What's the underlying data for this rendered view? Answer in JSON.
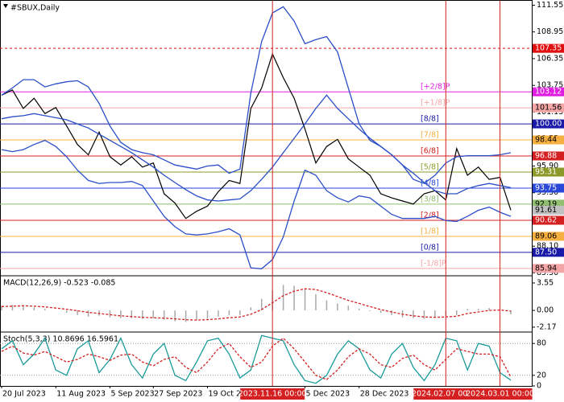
{
  "chart_data": [
    {
      "type": "line",
      "title": "#SBUX,Daily",
      "categories": [
        "20 Jul 2023",
        null,
        null,
        null,
        null,
        "11 Aug 2023",
        null,
        null,
        null,
        null,
        "5 Sep 2023",
        null,
        null,
        null,
        "27 Sep 2023",
        null,
        null,
        null,
        null,
        "19 Oct 2023",
        null,
        null,
        null,
        null,
        null,
        "2023.11.16 00:00",
        null,
        null,
        "5 Dec 2023",
        null,
        null,
        null,
        null,
        "28 Dec 2023",
        null,
        null,
        null,
        null,
        null,
        null,
        null,
        "2024.02.07 00:00",
        null,
        null,
        null,
        null,
        "2024.03.01 00:00",
        null
      ],
      "vlines": [
        "2023.11.16 00:00",
        "2024.02.07 00:00",
        "2024.03.01 00:00"
      ],
      "ylim": [
        85.3,
        111.9
      ],
      "yticks": [
        111.55,
        108.95,
        106.35,
        103.75,
        101.15,
        98.55,
        {
          "value": 95.9,
          "label": "95.90"
        },
        {
          "value": 93.3,
          "label": "93.30"
        },
        {
          "value": 90.7,
          "label": "90.70"
        },
        {
          "value": 88.1,
          "label": "88.10"
        },
        {
          "value": 85.5,
          "label": "85.50"
        }
      ],
      "series": [
        {
          "color": "#000000",
          "values": [
            102.8,
            103.3,
            101.5,
            102.5,
            101.0,
            101.6,
            99.8,
            98.0,
            97.0,
            99.2,
            96.8,
            96.0,
            96.8,
            95.8,
            96.2,
            93.2,
            92.3,
            90.8,
            91.5,
            92.0,
            93.4,
            94.5,
            94.2,
            101.5,
            103.5,
            106.8,
            104.5,
            102.5,
            99.5,
            96.2,
            97.8,
            98.5,
            96.6,
            95.8,
            95.0,
            93.2,
            92.8,
            92.5,
            92.2,
            93.2,
            93.5,
            92.6,
            97.6,
            95.0,
            95.8,
            94.6,
            94.8,
            91.6
          ]
        },
        {
          "color": "#2b4fc8",
          "values": [
            102.8,
            103.5,
            104.3,
            104.3,
            103.6,
            103.9,
            104.1,
            104.2,
            103.6,
            102.0,
            99.8,
            98.2,
            97.5,
            97.2,
            97.0,
            96.5,
            96.0,
            95.8,
            95.6,
            95.9,
            96.0,
            95.2,
            95.6,
            103.0,
            108.0,
            110.8,
            111.4,
            110.0,
            107.8,
            108.2,
            108.5,
            107.0,
            103.5,
            100.0,
            98.4,
            97.8,
            97.0,
            96.0,
            94.6,
            94.2,
            95.0,
            96.2,
            96.8,
            96.9,
            96.9,
            96.9,
            97.0,
            97.2
          ]
        },
        {
          "color": "#2b4fc8",
          "values": [
            100.5,
            100.7,
            100.8,
            101.0,
            100.8,
            100.6,
            100.4,
            100.0,
            99.6,
            99.0,
            98.4,
            97.8,
            97.2,
            96.5,
            95.8,
            95.0,
            94.3,
            93.6,
            93.0,
            92.6,
            92.5,
            92.6,
            92.7,
            93.5,
            94.6,
            95.8,
            97.2,
            98.6,
            100.0,
            101.5,
            102.8,
            101.5,
            100.5,
            99.5,
            98.6,
            97.8,
            97.0,
            96.0,
            95.2,
            94.3,
            93.5,
            93.2,
            93.2,
            93.7,
            94.0,
            94.2,
            94.0,
            93.8
          ]
        },
        {
          "color": "#2b4fc8",
          "values": [
            97.5,
            97.3,
            97.5,
            98.0,
            98.4,
            97.8,
            96.8,
            95.5,
            94.5,
            94.2,
            94.3,
            94.3,
            94.4,
            94.0,
            92.5,
            91.0,
            90.0,
            89.3,
            89.2,
            89.3,
            89.5,
            89.8,
            89.2,
            86.0,
            85.9,
            86.8,
            89.0,
            92.5,
            95.5,
            95.0,
            93.5,
            92.8,
            92.4,
            93.0,
            92.8,
            92.0,
            91.2,
            90.8,
            90.8,
            90.8,
            91.0,
            90.6,
            90.5,
            91.0,
            91.6,
            91.9,
            91.4,
            91.0
          ]
        }
      ],
      "levels": [
        {
          "value": 107.35,
          "label": "107.35",
          "color": "#e01010",
          "dashed": true
        },
        {
          "name": "[+2/8]P",
          "value": 103.12,
          "label": "103.12",
          "color": "#e020e0"
        },
        {
          "name": "[+1/8]P",
          "value": 101.56,
          "label": "101.56",
          "color": "#f4a6a6"
        },
        {
          "name": "[8/8]",
          "value": 100,
          "label": "100.00",
          "color": "#1a1aa8"
        },
        {
          "name": "[7/8]",
          "value": 98.44,
          "label": "98.44",
          "color": "#f5b041"
        },
        {
          "name": "[6/8]",
          "value": 96.88,
          "label": "96.88",
          "color": "#d42020"
        },
        {
          "name": "[5/8]",
          "value": 95.31,
          "label": "95.31",
          "color": "#8c9a2a"
        },
        {
          "name": "[4/8]",
          "value": 93.75,
          "label": "93.75",
          "color": "#2a48d8"
        },
        {
          "name": "[3/8]",
          "value": 92.19,
          "label": "92.19",
          "color": "#8fbf6f"
        },
        {
          "name": "[2/8]",
          "value": 90.62,
          "label": "90.62",
          "color": "#d42020"
        },
        {
          "name": "[1/8]",
          "value": 89.06,
          "label": "89.06",
          "color": "#f5b041"
        },
        {
          "name": "[0/8]",
          "value": 87.5,
          "label": "87.50",
          "color": "#1a1aa8"
        },
        {
          "name": "[-1/8]P",
          "value": 85.94,
          "label": "85.94",
          "color": "#f4a6a6"
        }
      ],
      "last_price": {
        "value": 91.61,
        "label": "91.61",
        "color": "#c0c0c0"
      }
    },
    {
      "type": "macd",
      "title": "MACD(12,26,9) -0.523 -0.085",
      "ylim": [
        -2.7,
        4.38
      ],
      "yticks": [
        3.55,
        {
          "value": 0,
          "label": "0.00"
        },
        -2.17
      ],
      "series": [
        {
          "style": "bar",
          "color": "#a8a8a8",
          "values": [
            0.6,
            0.7,
            0.5,
            0.4,
            0.2,
            0.0,
            -0.3,
            -0.6,
            -0.8,
            -0.7,
            -0.9,
            -1.0,
            -1.0,
            -1.1,
            -1.0,
            -1.2,
            -1.4,
            -1.5,
            -1.3,
            -1.1,
            -0.8,
            -0.6,
            -0.6,
            0.4,
            1.5,
            2.6,
            3.3,
            3.2,
            2.8,
            2.1,
            1.3,
            0.9,
            0.6,
            0.2,
            -0.1,
            -0.3,
            -0.6,
            -0.9,
            -1.0,
            -1.1,
            -0.9,
            -0.7,
            -0.6,
            0.2,
            0.2,
            0.3,
            0.1,
            -0.523
          ]
        },
        {
          "style": "dashed",
          "color": "#d42020",
          "values": [
            0.5,
            0.55,
            0.6,
            0.55,
            0.45,
            0.3,
            0.15,
            -0.05,
            -0.25,
            -0.4,
            -0.55,
            -0.7,
            -0.8,
            -0.9,
            -0.95,
            -1.0,
            -1.1,
            -1.2,
            -1.25,
            -1.2,
            -1.1,
            -0.95,
            -0.85,
            -0.5,
            0.1,
            1.0,
            1.9,
            2.5,
            2.8,
            2.7,
            2.3,
            1.8,
            1.3,
            0.9,
            0.5,
            0.1,
            -0.2,
            -0.5,
            -0.7,
            -0.85,
            -0.9,
            -0.85,
            -0.75,
            -0.4,
            -0.2,
            0.0,
            0.05,
            -0.085
          ]
        }
      ]
    },
    {
      "type": "line",
      "title": "Stoch(5,3,3) 10.8696 16.5961",
      "ylim": [
        0,
        100
      ],
      "yticks": [
        80,
        20,
        0
      ],
      "grid": true,
      "series": [
        {
          "style": "line",
          "color": "#1a9a9a",
          "values": [
            70,
            85,
            40,
            60,
            90,
            30,
            20,
            70,
            85,
            25,
            50,
            90,
            40,
            15,
            60,
            80,
            20,
            10,
            45,
            85,
            90,
            60,
            15,
            30,
            95,
            90,
            85,
            40,
            10,
            5,
            20,
            60,
            85,
            70,
            30,
            15,
            60,
            80,
            35,
            10,
            40,
            90,
            85,
            30,
            80,
            75,
            25,
            10.8696
          ]
        },
        {
          "style": "dashed",
          "color": "#d42020",
          "values": [
            65,
            75,
            62,
            58,
            65,
            55,
            45,
            50,
            60,
            55,
            48,
            58,
            60,
            45,
            38,
            50,
            55,
            35,
            25,
            45,
            70,
            80,
            55,
            35,
            45,
            75,
            90,
            70,
            45,
            20,
            12,
            30,
            55,
            70,
            60,
            40,
            35,
            52,
            58,
            40,
            30,
            50,
            70,
            65,
            60,
            60,
            55,
            16.5961
          ]
        }
      ]
    }
  ]
}
